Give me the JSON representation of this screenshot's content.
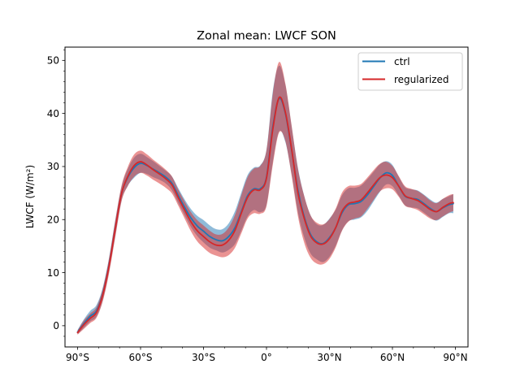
{
  "chart_data": {
    "type": "line",
    "title": "Zonal mean: LWCF SON",
    "xlabel": "",
    "ylabel": "LWCF (W/m²)",
    "xlim": [
      -96,
      96
    ],
    "ylim": [
      -4,
      52.5
    ],
    "xticks": [
      -90,
      -60,
      -30,
      0,
      30,
      60,
      90
    ],
    "xtick_labels": [
      "90°S",
      "60°S",
      "30°S",
      "0°",
      "30°N",
      "60°N",
      "90°N"
    ],
    "xminor_ticks": [
      -80,
      -70,
      -50,
      -40,
      -20,
      -10,
      10,
      20,
      40,
      50,
      70,
      80
    ],
    "yticks": [
      0,
      10,
      20,
      30,
      40,
      50
    ],
    "ytick_labels": [
      "0",
      "10",
      "20",
      "30",
      "40",
      "50"
    ],
    "yminor_ticks": [
      -2,
      2,
      4,
      6,
      8,
      12,
      14,
      16,
      18,
      22,
      24,
      26,
      28,
      32,
      34,
      36,
      38,
      42,
      44,
      46,
      48,
      52
    ],
    "grid": false,
    "legend_position": "top-right",
    "x": [
      -90,
      -87,
      -84,
      -81,
      -78,
      -75,
      -72,
      -69,
      -66,
      -63,
      -60,
      -57,
      -54,
      -51,
      -48,
      -45,
      -42,
      -39,
      -36,
      -33,
      -30,
      -27,
      -24,
      -21,
      -18,
      -15,
      -12,
      -9,
      -6,
      -3,
      0,
      3,
      6,
      9,
      12,
      15,
      18,
      21,
      24,
      27,
      30,
      33,
      36,
      39,
      42,
      45,
      48,
      51,
      54,
      57,
      60,
      63,
      66,
      69,
      72,
      75,
      78,
      81,
      84,
      87,
      89
    ],
    "series": [
      {
        "name": "ctrl",
        "color": "#1f77b4",
        "values": [
          -1.2,
          0.4,
          1.8,
          2.8,
          6.0,
          11.5,
          18.5,
          25.0,
          28.0,
          29.8,
          30.6,
          30.2,
          29.5,
          28.8,
          28.0,
          26.8,
          24.5,
          22.3,
          20.3,
          18.8,
          17.8,
          16.8,
          16.2,
          16.0,
          16.8,
          18.5,
          21.5,
          24.5,
          25.8,
          25.8,
          28.0,
          37.5,
          42.8,
          40.0,
          33.0,
          25.5,
          20.5,
          17.2,
          15.8,
          15.5,
          16.6,
          18.5,
          21.3,
          22.8,
          23.0,
          23.4,
          24.6,
          26.2,
          27.8,
          28.8,
          28.3,
          26.3,
          24.4,
          24.0,
          23.8,
          23.0,
          22.1,
          21.5,
          22.2,
          22.8,
          23.0
        ],
        "band_upper": [
          -0.8,
          1.2,
          2.8,
          3.9,
          7.2,
          12.8,
          20.0,
          26.3,
          29.6,
          31.7,
          32.4,
          31.8,
          31.0,
          30.1,
          29.2,
          28.1,
          25.9,
          23.8,
          22.0,
          20.7,
          19.9,
          18.9,
          18.2,
          18.2,
          19.3,
          21.6,
          25.1,
          28.4,
          29.8,
          30.2,
          33.2,
          44.2,
          49.0,
          45.4,
          37.5,
          29.7,
          24.4,
          20.8,
          19.1,
          19.0,
          20.2,
          21.9,
          24.6,
          25.9,
          26.0,
          26.4,
          27.6,
          29.0,
          30.4,
          31.0,
          30.3,
          28.1,
          26.1,
          25.7,
          25.5,
          24.7,
          23.8,
          23.2,
          23.9,
          24.4,
          24.8
        ],
        "band_lower": [
          -1.6,
          -0.4,
          0.8,
          1.7,
          4.8,
          10.2,
          17.0,
          23.7,
          26.4,
          27.9,
          28.8,
          28.6,
          28.0,
          27.5,
          26.8,
          25.5,
          23.1,
          20.8,
          18.6,
          16.9,
          15.7,
          14.7,
          14.2,
          13.8,
          14.3,
          15.4,
          17.9,
          20.6,
          21.8,
          21.4,
          22.8,
          30.8,
          36.6,
          34.6,
          28.5,
          21.3,
          16.6,
          13.6,
          12.5,
          12.0,
          13.0,
          15.1,
          18.0,
          19.7,
          20.0,
          20.4,
          21.6,
          23.4,
          25.2,
          26.6,
          26.3,
          24.5,
          22.7,
          22.3,
          22.1,
          21.3,
          20.4,
          19.8,
          20.5,
          21.2,
          21.2
        ]
      },
      {
        "name": "regularized",
        "color": "#d62728",
        "values": [
          -1.3,
          0.2,
          1.4,
          2.5,
          5.8,
          11.3,
          18.4,
          25.0,
          28.2,
          30.2,
          30.9,
          30.3,
          29.4,
          28.6,
          27.7,
          26.5,
          24.1,
          21.8,
          19.6,
          17.9,
          16.8,
          15.8,
          15.2,
          15.2,
          16.1,
          18.0,
          21.2,
          24.2,
          25.6,
          25.6,
          27.8,
          37.0,
          43.0,
          40.2,
          33.2,
          25.0,
          20.2,
          16.9,
          15.6,
          15.4,
          16.4,
          18.5,
          21.6,
          23.0,
          23.3,
          23.7,
          25.0,
          26.5,
          27.9,
          28.4,
          27.9,
          26.3,
          24.5,
          24.0,
          23.6,
          22.8,
          21.9,
          21.5,
          22.3,
          23.0,
          23.2
        ],
        "band_upper": [
          -0.9,
          1.0,
          2.3,
          3.5,
          7.0,
          12.7,
          20.0,
          26.5,
          30.0,
          32.3,
          33.0,
          32.3,
          31.3,
          30.4,
          29.4,
          28.1,
          25.6,
          23.4,
          21.4,
          19.9,
          18.9,
          17.9,
          17.2,
          17.3,
          18.5,
          20.9,
          24.6,
          28.0,
          29.6,
          30.1,
          33.1,
          43.7,
          49.7,
          45.6,
          37.6,
          29.5,
          24.4,
          20.8,
          19.4,
          19.1,
          20.1,
          22.1,
          25.1,
          26.3,
          26.4,
          26.7,
          27.9,
          29.3,
          30.5,
          30.9,
          30.1,
          28.2,
          26.3,
          25.8,
          25.4,
          24.6,
          23.6,
          23.1,
          23.9,
          24.6,
          24.8
        ],
        "band_lower": [
          -1.7,
          -0.6,
          0.5,
          1.5,
          4.6,
          9.9,
          16.8,
          23.5,
          26.4,
          28.1,
          28.8,
          28.3,
          27.5,
          26.8,
          26.0,
          24.9,
          22.6,
          20.2,
          17.8,
          15.9,
          14.7,
          13.7,
          13.2,
          12.9,
          13.3,
          14.7,
          17.4,
          20.2,
          21.2,
          21.1,
          22.5,
          30.3,
          36.4,
          34.8,
          28.2,
          20.6,
          15.6,
          12.8,
          11.7,
          11.6,
          12.6,
          14.8,
          17.9,
          19.6,
          20.2,
          20.6,
          22.0,
          23.7,
          25.3,
          25.9,
          25.7,
          24.3,
          22.6,
          22.2,
          21.8,
          21.0,
          20.2,
          19.9,
          20.6,
          21.3,
          21.6
        ]
      }
    ]
  }
}
